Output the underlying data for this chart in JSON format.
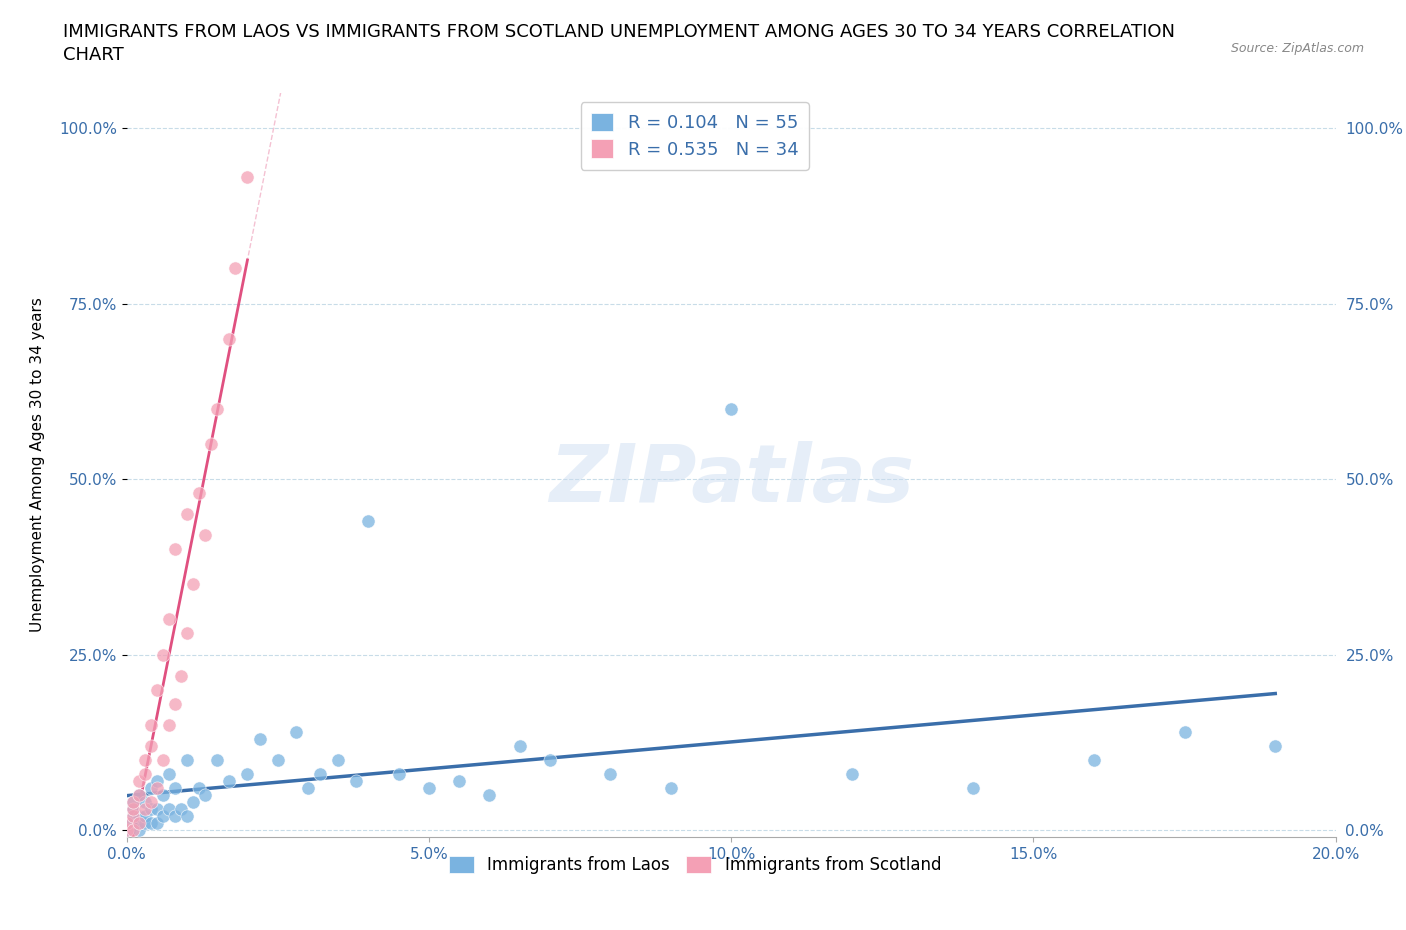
{
  "title_line1": "IMMIGRANTS FROM LAOS VS IMMIGRANTS FROM SCOTLAND UNEMPLOYMENT AMONG AGES 30 TO 34 YEARS CORRELATION",
  "title_line2": "CHART",
  "source": "Source: ZipAtlas.com",
  "ylabel": "Unemployment Among Ages 30 to 34 years",
  "watermark": "ZIPatlas",
  "laos_R": 0.104,
  "laos_N": 55,
  "scotland_R": 0.535,
  "scotland_N": 34,
  "xlim": [
    0.0,
    0.2
  ],
  "ylim": [
    -0.01,
    1.05
  ],
  "xticks": [
    0.0,
    0.05,
    0.1,
    0.15,
    0.2
  ],
  "xticklabels": [
    "0.0%",
    "5.0%",
    "10.0%",
    "15.0%",
    "20.0%"
  ],
  "yticks": [
    0.0,
    0.25,
    0.5,
    0.75,
    1.0
  ],
  "yticklabels": [
    "0.0%",
    "25.0%",
    "50.0%",
    "75.0%",
    "100.0%"
  ],
  "laos_color": "#7ab3e0",
  "scotland_color": "#f4a0b5",
  "laos_line_color": "#3a6eaa",
  "scotland_line_color": "#e05080",
  "legend_color": "#3a6eaa",
  "title_fontsize": 13,
  "axis_fontsize": 11,
  "tick_fontsize": 11,
  "laos_x": [
    0.0,
    0.0,
    0.001,
    0.001,
    0.001,
    0.002,
    0.002,
    0.002,
    0.002,
    0.003,
    0.003,
    0.003,
    0.004,
    0.004,
    0.004,
    0.005,
    0.005,
    0.005,
    0.006,
    0.006,
    0.007,
    0.007,
    0.008,
    0.008,
    0.009,
    0.01,
    0.01,
    0.011,
    0.012,
    0.013,
    0.015,
    0.017,
    0.02,
    0.022,
    0.025,
    0.028,
    0.03,
    0.032,
    0.035,
    0.038,
    0.04,
    0.045,
    0.05,
    0.055,
    0.06,
    0.065,
    0.07,
    0.08,
    0.09,
    0.1,
    0.12,
    0.14,
    0.16,
    0.175,
    0.19
  ],
  "laos_y": [
    0.0,
    0.01,
    0.02,
    0.03,
    0.04,
    0.0,
    0.01,
    0.02,
    0.05,
    0.01,
    0.02,
    0.04,
    0.01,
    0.03,
    0.06,
    0.01,
    0.03,
    0.07,
    0.02,
    0.05,
    0.03,
    0.08,
    0.02,
    0.06,
    0.03,
    0.02,
    0.1,
    0.04,
    0.06,
    0.05,
    0.1,
    0.07,
    0.08,
    0.13,
    0.1,
    0.14,
    0.06,
    0.08,
    0.1,
    0.07,
    0.44,
    0.08,
    0.06,
    0.07,
    0.05,
    0.12,
    0.1,
    0.08,
    0.06,
    0.6,
    0.08,
    0.06,
    0.1,
    0.14,
    0.12
  ],
  "scotland_x": [
    0.0,
    0.0,
    0.001,
    0.001,
    0.001,
    0.001,
    0.002,
    0.002,
    0.002,
    0.003,
    0.003,
    0.003,
    0.004,
    0.004,
    0.004,
    0.005,
    0.005,
    0.006,
    0.006,
    0.007,
    0.007,
    0.008,
    0.008,
    0.009,
    0.01,
    0.01,
    0.011,
    0.012,
    0.013,
    0.014,
    0.015,
    0.017,
    0.018,
    0.02
  ],
  "scotland_y": [
    0.0,
    0.01,
    0.0,
    0.02,
    0.03,
    0.04,
    0.01,
    0.05,
    0.07,
    0.03,
    0.08,
    0.1,
    0.04,
    0.12,
    0.15,
    0.06,
    0.2,
    0.1,
    0.25,
    0.15,
    0.3,
    0.18,
    0.4,
    0.22,
    0.28,
    0.45,
    0.35,
    0.48,
    0.42,
    0.55,
    0.6,
    0.7,
    0.8,
    0.93
  ]
}
